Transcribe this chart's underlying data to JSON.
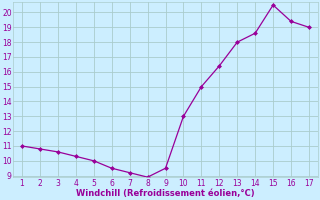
{
  "x": [
    1,
    2,
    3,
    4,
    5,
    6,
    7,
    8,
    9,
    10,
    11,
    12,
    13,
    14,
    15,
    16,
    17
  ],
  "y": [
    11.0,
    10.8,
    10.6,
    10.3,
    10.0,
    9.5,
    9.2,
    8.9,
    9.5,
    13.0,
    15.0,
    16.4,
    18.0,
    18.6,
    20.5,
    19.4,
    19.0
  ],
  "line_color": "#990099",
  "marker_color": "#990099",
  "bg_color": "#cceeff",
  "grid_color": "#aacccc",
  "xlabel": "Windchill (Refroidissement éolien,°C)",
  "xlabel_color": "#990099",
  "tick_color": "#990099",
  "ylim": [
    8.9,
    20.7
  ],
  "xlim": [
    0.5,
    17.5
  ],
  "yticks": [
    9,
    10,
    11,
    12,
    13,
    14,
    15,
    16,
    17,
    18,
    19,
    20
  ],
  "xticks": [
    1,
    2,
    3,
    4,
    5,
    6,
    7,
    8,
    9,
    10,
    11,
    12,
    13,
    14,
    15,
    16,
    17
  ]
}
